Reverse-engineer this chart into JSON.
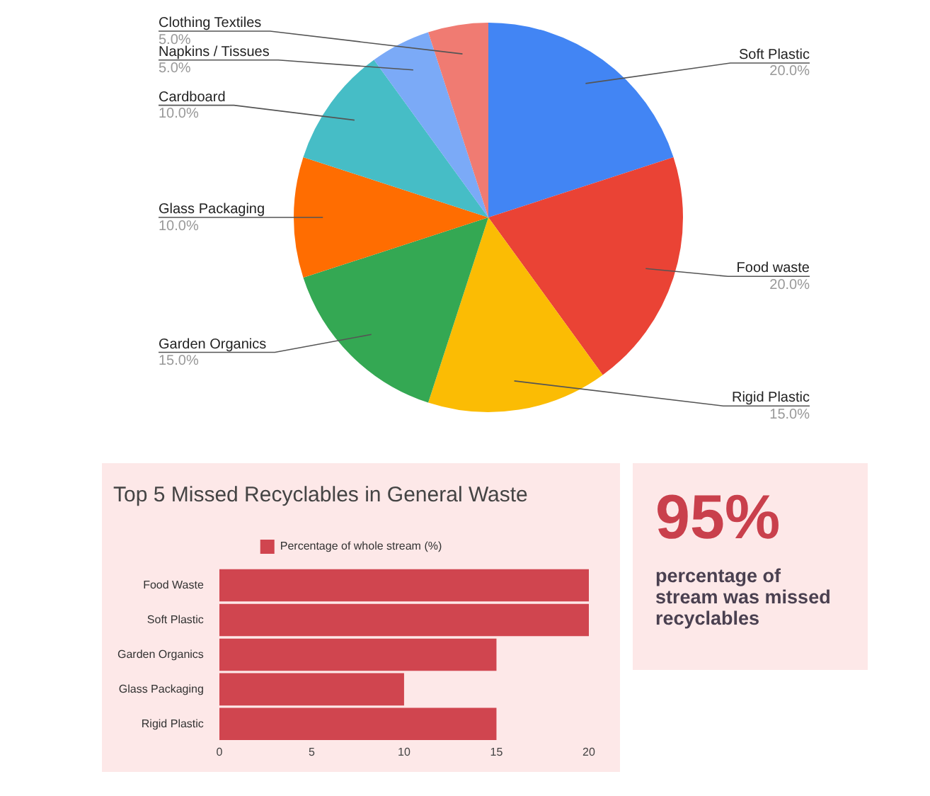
{
  "chart_data": [
    {
      "type": "pie",
      "categories": [
        "Soft Plastic",
        "Food waste",
        "Rigid Plastic",
        "Garden Organics",
        "Glass Packaging",
        "Cardboard",
        "Napkins / Tissues",
        "Clothing Textiles"
      ],
      "values": [
        20,
        20,
        15,
        15,
        10,
        10,
        5,
        5
      ],
      "value_labels": [
        "20.0%",
        "20.0%",
        "15.0%",
        "15.0%",
        "10.0%",
        "10.0%",
        "5.0%",
        "5.0%"
      ],
      "colors": [
        "#4285f4",
        "#ea4335",
        "#fbbc04",
        "#34a853",
        "#ff6d01",
        "#46bdc6",
        "#7baaf7",
        "#f07b72"
      ],
      "legend": false
    },
    {
      "type": "bar",
      "orientation": "horizontal",
      "title": "Top 5 Missed Recyclables in General Waste",
      "categories": [
        "Food Waste",
        "Soft Plastic",
        "Garden Organics",
        "Glass Packaging",
        "Rigid Plastic"
      ],
      "series": [
        {
          "name": "Percentage of whole stream (%)",
          "color": "#d0454f",
          "values": [
            20,
            20,
            15,
            10,
            15
          ]
        }
      ],
      "xlim": [
        0,
        20
      ],
      "xticks": [
        0,
        5,
        10,
        15,
        20
      ],
      "grid": false,
      "legend": "top"
    },
    {
      "type": "other",
      "title": "95%",
      "subtitle": "percentage of stream was missed recyclables"
    }
  ]
}
